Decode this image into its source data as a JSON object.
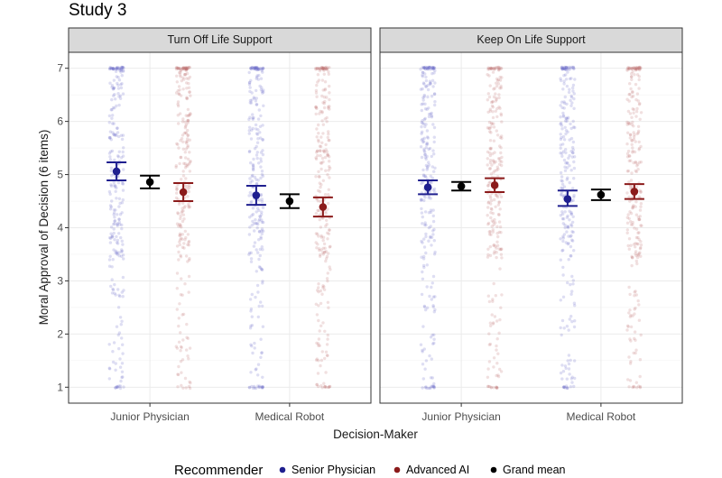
{
  "chart_data": {
    "type": "scatter",
    "title": "Study 3",
    "xlabel": "Decision-Maker",
    "ylabel": "Moral Approval of Decision (6 items)",
    "ylim": [
      0.7,
      7.3
    ],
    "yticks": [
      1,
      2,
      3,
      4,
      5,
      6,
      7
    ],
    "categories": [
      "Junior Physician",
      "Medical Robot"
    ],
    "grid": true,
    "legend": {
      "position": "bottom",
      "title": "Recommender",
      "entries": [
        {
          "name": "Senior Physician",
          "color": "#1f1f8f"
        },
        {
          "name": "Advanced AI",
          "color": "#8b1a1a"
        },
        {
          "name": "Grand mean",
          "color": "#000000"
        }
      ]
    },
    "panels": [
      {
        "label": "Turn Off Life Support",
        "points": [
          {
            "category": "Junior Physician",
            "series": "Senior Physician",
            "mean": 5.06,
            "lower": 4.89,
            "upper": 5.23
          },
          {
            "category": "Junior Physician",
            "series": "Grand mean",
            "mean": 4.86,
            "lower": 4.74,
            "upper": 4.98
          },
          {
            "category": "Junior Physician",
            "series": "Advanced AI",
            "mean": 4.67,
            "lower": 4.5,
            "upper": 4.84
          },
          {
            "category": "Medical Robot",
            "series": "Senior Physician",
            "mean": 4.61,
            "lower": 4.43,
            "upper": 4.79
          },
          {
            "category": "Medical Robot",
            "series": "Grand mean",
            "mean": 4.5,
            "lower": 4.37,
            "upper": 4.63
          },
          {
            "category": "Medical Robot",
            "series": "Advanced AI",
            "mean": 4.39,
            "lower": 4.21,
            "upper": 4.57
          }
        ]
      },
      {
        "label": "Keep On Life Support",
        "points": [
          {
            "category": "Junior Physician",
            "series": "Senior Physician",
            "mean": 4.76,
            "lower": 4.63,
            "upper": 4.89
          },
          {
            "category": "Junior Physician",
            "series": "Grand mean",
            "mean": 4.78,
            "lower": 4.7,
            "upper": 4.86
          },
          {
            "category": "Junior Physician",
            "series": "Advanced AI",
            "mean": 4.8,
            "lower": 4.67,
            "upper": 4.93
          },
          {
            "category": "Medical Robot",
            "series": "Senior Physician",
            "mean": 4.54,
            "lower": 4.41,
            "upper": 4.7
          },
          {
            "category": "Medical Robot",
            "series": "Grand mean",
            "mean": 4.62,
            "lower": 4.52,
            "upper": 4.72
          },
          {
            "category": "Medical Robot",
            "series": "Advanced AI",
            "mean": 4.68,
            "lower": 4.54,
            "upper": 4.82
          }
        ]
      }
    ],
    "raw_points_note_none": null
  },
  "colors": {
    "senior_physician": "#1f1f8f",
    "advanced_ai": "#8b1a1a",
    "grand_mean": "#000000",
    "jitter_senior": "#6a6ac8",
    "jitter_ai": "#c07070",
    "strip_bg": "#d9d9d9",
    "grid": "#ebebeb"
  }
}
